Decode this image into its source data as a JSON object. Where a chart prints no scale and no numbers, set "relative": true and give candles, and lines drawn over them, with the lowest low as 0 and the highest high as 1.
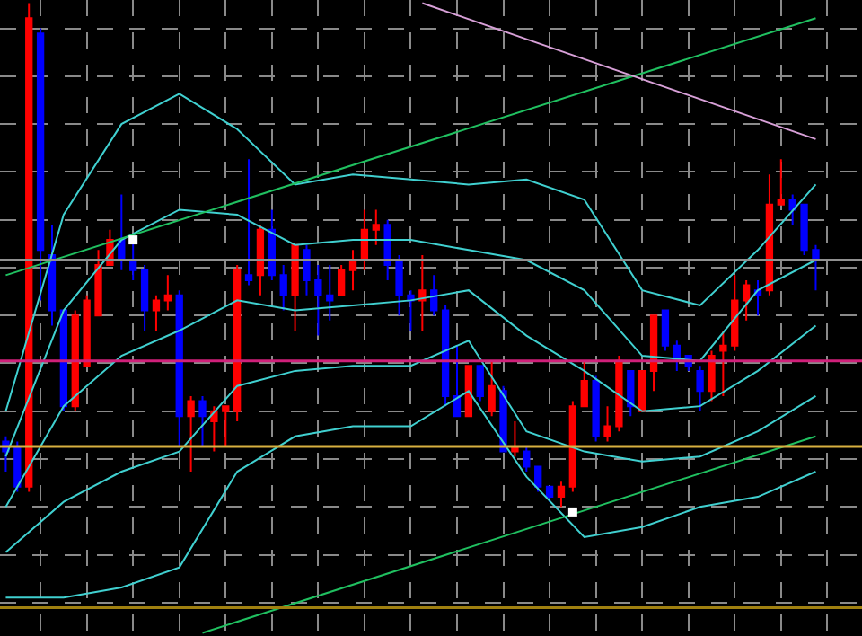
{
  "chart_data": {
    "type": "candlestick",
    "relative": true,
    "grid": true,
    "tick_labels": false,
    "categories": [
      null,
      null,
      null,
      null,
      null,
      null,
      null,
      null,
      null,
      null,
      null,
      null,
      null,
      null,
      null,
      null,
      null,
      null,
      null,
      null,
      null,
      null,
      null,
      null,
      null,
      null,
      null,
      null,
      null,
      null,
      null,
      null,
      null,
      null,
      null,
      null,
      null,
      null,
      null,
      null,
      null,
      null,
      null,
      null,
      null,
      null,
      null,
      null,
      null,
      null,
      null,
      null,
      null,
      null,
      null,
      null,
      null,
      null,
      null,
      null,
      null,
      null,
      null,
      null,
      null,
      null,
      null,
      null,
      null,
      null,
      null
    ],
    "colors": [
      "#0000ff",
      "#0000ff",
      "#ff0000",
      "#0000ff",
      "#0000ff",
      "#0000ff",
      "#ff0000",
      "#ff0000",
      "#ff0000",
      "#ff0000",
      "#0000ff",
      "#0000ff",
      "#0000ff",
      "#ff0000",
      "#ff0000",
      "#0000ff",
      "#ff0000",
      "#0000ff",
      "#ff0000",
      "#ff0000",
      "#ff0000",
      "#0000ff",
      "#ff0000",
      "#0000ff",
      "#0000ff",
      "#ff0000",
      "#0000ff",
      "#0000ff",
      "#0000ff",
      "#ff0000",
      "#ff0000",
      "#ff0000",
      "#ff0000",
      "#0000ff",
      "#0000ff",
      "#0000ff",
      "#ff0000",
      "#0000ff",
      "#0000ff",
      "#0000ff",
      "#ff0000",
      "#0000ff",
      "#ff0000",
      "#0000ff",
      "#ff0000",
      "#0000ff",
      "#0000ff",
      "#0000ff",
      "#ff0000",
      "#ff0000",
      "#ff0000",
      "#0000ff",
      "#ff0000",
      "#ff0000",
      "#0000ff",
      "#ff0000",
      "#ff0000",
      "#0000ff",
      "#0000ff",
      "#0000ff",
      "#0000ff",
      "#ff0000",
      "#ff0000",
      "#ff0000",
      "#ff0000",
      "#0000ff",
      "#ff0000",
      "#ff0000",
      "#0000ff",
      "#0000ff",
      "#0000ff"
    ],
    "ohlc": [
      [
        0.13,
        0.14,
        0.07,
        0.11
      ],
      [
        0.12,
        0.13,
        0.03,
        0.04
      ],
      [
        0.04,
        1.0,
        0.03,
        0.97
      ],
      [
        0.94,
        0.95,
        0.41,
        0.51
      ],
      [
        0.5,
        0.56,
        0.36,
        0.39
      ],
      [
        0.39,
        0.39,
        0.19,
        0.2
      ],
      [
        0.2,
        0.39,
        0.19,
        0.38
      ],
      [
        0.28,
        0.42,
        0.28,
        0.41
      ],
      [
        0.38,
        0.51,
        0.38,
        0.48
      ],
      [
        0.48,
        0.55,
        0.48,
        0.53
      ],
      [
        0.53,
        0.62,
        0.47,
        0.49
      ],
      [
        0.49,
        0.53,
        0.45,
        0.47
      ],
      [
        0.47,
        0.48,
        0.35,
        0.39
      ],
      [
        0.39,
        0.42,
        0.35,
        0.41
      ],
      [
        0.41,
        0.46,
        0.39,
        0.42
      ],
      [
        0.42,
        0.43,
        0.12,
        0.18
      ],
      [
        0.18,
        0.22,
        0.07,
        0.21
      ],
      [
        0.21,
        0.22,
        0.12,
        0.18
      ],
      [
        0.17,
        0.2,
        0.11,
        0.19
      ],
      [
        0.19,
        0.2,
        0.12,
        0.2
      ],
      [
        0.19,
        0.48,
        0.17,
        0.47
      ],
      [
        0.46,
        0.69,
        0.44,
        0.45
      ],
      [
        0.46,
        0.56,
        0.42,
        0.55
      ],
      [
        0.55,
        0.59,
        0.45,
        0.46
      ],
      [
        0.46,
        0.48,
        0.39,
        0.42
      ],
      [
        0.42,
        0.52,
        0.35,
        0.52
      ],
      [
        0.51,
        0.52,
        0.42,
        0.45
      ],
      [
        0.45,
        0.48,
        0.34,
        0.42
      ],
      [
        0.42,
        0.48,
        0.37,
        0.41
      ],
      [
        0.42,
        0.48,
        0.42,
        0.47
      ],
      [
        0.47,
        0.51,
        0.43,
        0.49
      ],
      [
        0.49,
        0.59,
        0.47,
        0.55
      ],
      [
        0.55,
        0.59,
        0.52,
        0.56
      ],
      [
        0.56,
        0.57,
        0.45,
        0.48
      ],
      [
        0.49,
        0.5,
        0.38,
        0.42
      ],
      [
        0.42,
        0.43,
        0.35,
        0.41
      ],
      [
        0.41,
        0.5,
        0.35,
        0.43
      ],
      [
        0.43,
        0.46,
        0.38,
        0.39
      ],
      [
        0.39,
        0.4,
        0.2,
        0.22
      ],
      [
        0.22,
        0.32,
        0.18,
        0.18
      ],
      [
        0.18,
        0.28,
        0.18,
        0.28
      ],
      [
        0.28,
        0.28,
        0.21,
        0.22
      ],
      [
        0.19,
        0.29,
        0.18,
        0.24
      ],
      [
        0.23,
        0.24,
        0.11,
        0.11
      ],
      [
        0.11,
        0.17,
        0.1,
        0.12
      ],
      [
        0.11,
        0.12,
        0.07,
        0.08
      ],
      [
        0.08,
        0.08,
        0.03,
        0.04
      ],
      [
        0.04,
        0.04,
        0.01,
        0.02
      ],
      [
        0.02,
        0.05,
        0.0,
        0.04
      ],
      [
        0.04,
        0.21,
        0.03,
        0.2
      ],
      [
        0.2,
        0.29,
        0.2,
        0.25
      ],
      [
        0.25,
        0.26,
        0.13,
        0.14
      ],
      [
        0.14,
        0.2,
        0.13,
        0.16
      ],
      [
        0.16,
        0.3,
        0.15,
        0.29
      ],
      [
        0.27,
        0.27,
        0.18,
        0.2
      ],
      [
        0.19,
        0.27,
        0.19,
        0.27
      ],
      [
        0.27,
        0.38,
        0.23,
        0.38
      ],
      [
        0.39,
        0.39,
        0.31,
        0.32
      ],
      [
        0.32,
        0.33,
        0.27,
        0.29
      ],
      [
        0.3,
        0.3,
        0.27,
        0.28
      ],
      [
        0.27,
        0.28,
        0.19,
        0.23
      ],
      [
        0.23,
        0.31,
        0.21,
        0.3
      ],
      [
        0.31,
        0.35,
        0.22,
        0.32
      ],
      [
        0.32,
        0.46,
        0.31,
        0.41
      ],
      [
        0.41,
        0.45,
        0.37,
        0.44
      ],
      [
        0.43,
        0.45,
        0.38,
        0.42
      ],
      [
        0.43,
        0.66,
        0.42,
        0.6
      ],
      [
        0.6,
        0.69,
        0.6,
        0.61
      ],
      [
        0.61,
        0.62,
        0.56,
        0.59
      ],
      [
        0.6,
        0.6,
        0.5,
        0.51
      ],
      [
        0.51,
        0.52,
        0.43,
        0.49
      ]
    ],
    "series": [
      {
        "type": "line",
        "color": "#40d0d0",
        "values": [
          0.19,
          null,
          null,
          null,
          null,
          0.58,
          null,
          null,
          null,
          null,
          0.76,
          null,
          null,
          null,
          null,
          0.82,
          null,
          null,
          null,
          null,
          0.75,
          null,
          null,
          null,
          null,
          0.64,
          null,
          null,
          null,
          null,
          0.66,
          null,
          null,
          null,
          null,
          0.65,
          null,
          null,
          null,
          null,
          0.64,
          null,
          null,
          null,
          null,
          0.65,
          null,
          null,
          null,
          null,
          0.61,
          null,
          null,
          null,
          null,
          0.43,
          null,
          null,
          null,
          null,
          0.4,
          null,
          null,
          null,
          null,
          0.51,
          null,
          null,
          null,
          null,
          0.64
        ]
      },
      {
        "type": "line",
        "color": "#40d0d0",
        "values": [
          0.1,
          null,
          null,
          null,
          null,
          0.39,
          null,
          null,
          null,
          null,
          0.53,
          null,
          null,
          null,
          null,
          0.59,
          null,
          null,
          null,
          null,
          0.58,
          null,
          null,
          null,
          null,
          0.52,
          null,
          null,
          null,
          null,
          0.53,
          null,
          null,
          null,
          null,
          0.53,
          null,
          null,
          null,
          null,
          0.51,
          null,
          null,
          null,
          null,
          0.49,
          null,
          null,
          null,
          null,
          0.43,
          null,
          null,
          null,
          null,
          0.3,
          null,
          null,
          null,
          null,
          0.29,
          null,
          null,
          null,
          null,
          0.43,
          null,
          null,
          null,
          null,
          0.49
        ]
      },
      {
        "type": "line",
        "color": "#40d0d0",
        "values": [
          0.0,
          null,
          null,
          null,
          null,
          0.2,
          null,
          null,
          null,
          null,
          0.3,
          null,
          null,
          null,
          null,
          0.35,
          null,
          null,
          null,
          null,
          0.41,
          null,
          null,
          null,
          null,
          0.39,
          null,
          null,
          null,
          null,
          0.4,
          null,
          null,
          null,
          null,
          0.41,
          null,
          null,
          null,
          null,
          0.43,
          null,
          null,
          null,
          null,
          0.34,
          null,
          null,
          null,
          null,
          0.27,
          null,
          null,
          null,
          null,
          0.19,
          null,
          null,
          null,
          null,
          0.2,
          null,
          null,
          null,
          null,
          0.27,
          null,
          null,
          null,
          null,
          0.36
        ]
      },
      {
        "type": "line",
        "color": "#40d0d0",
        "values": [
          -0.09,
          null,
          null,
          null,
          null,
          0.01,
          null,
          null,
          null,
          null,
          0.07,
          null,
          null,
          null,
          null,
          0.11,
          null,
          null,
          null,
          null,
          0.24,
          null,
          null,
          null,
          null,
          0.27,
          null,
          null,
          null,
          null,
          0.28,
          null,
          null,
          null,
          null,
          0.28,
          null,
          null,
          null,
          null,
          0.33,
          null,
          null,
          null,
          null,
          0.15,
          null,
          null,
          null,
          null,
          0.11,
          null,
          null,
          null,
          null,
          0.09,
          null,
          null,
          null,
          null,
          0.1,
          null,
          null,
          null,
          null,
          0.15,
          null,
          null,
          null,
          null,
          0.22
        ]
      },
      {
        "type": "line",
        "color": "#40d0d0",
        "values": [
          -0.18,
          null,
          null,
          null,
          null,
          -0.18,
          null,
          null,
          null,
          null,
          -0.16,
          null,
          null,
          null,
          null,
          -0.12,
          null,
          null,
          null,
          null,
          0.07,
          null,
          null,
          null,
          null,
          0.14,
          null,
          null,
          null,
          null,
          0.16,
          null,
          null,
          null,
          null,
          0.16,
          null,
          null,
          null,
          null,
          0.23,
          null,
          null,
          null,
          null,
          0.06,
          null,
          null,
          null,
          null,
          -0.06,
          null,
          null,
          null,
          null,
          -0.04,
          null,
          null,
          null,
          null,
          0.0,
          null,
          null,
          null,
          null,
          0.02,
          null,
          null,
          null,
          null,
          0.07
        ]
      },
      {
        "type": "line",
        "color": "#20c060",
        "values": [
          0.46,
          null,
          null,
          null,
          null,
          null,
          null,
          null,
          null,
          null,
          null,
          null,
          null,
          null,
          null,
          null,
          null,
          null,
          null,
          null,
          null,
          null,
          null,
          null,
          null,
          null,
          null,
          null,
          null,
          null,
          null,
          null,
          null,
          null,
          null,
          null,
          null,
          null,
          null,
          null,
          null,
          null,
          null,
          null,
          null,
          null,
          null,
          null,
          null,
          null,
          null,
          null,
          null,
          null,
          null,
          null,
          null,
          null,
          null,
          null,
          null,
          null,
          null,
          null,
          null,
          null,
          null,
          null,
          null,
          null,
          0.97
        ]
      },
      {
        "type": "line",
        "color": "#20c060",
        "values": [
          null,
          null,
          null,
          null,
          null,
          null,
          null,
          null,
          null,
          null,
          null,
          null,
          null,
          null,
          null,
          null,
          null,
          -0.25,
          null,
          null,
          null,
          null,
          null,
          null,
          null,
          null,
          null,
          null,
          null,
          null,
          null,
          null,
          null,
          null,
          null,
          null,
          null,
          null,
          null,
          null,
          null,
          null,
          null,
          null,
          null,
          null,
          null,
          null,
          null,
          null,
          null,
          null,
          null,
          null,
          null,
          null,
          null,
          null,
          null,
          null,
          null,
          null,
          null,
          null,
          null,
          null,
          null,
          null,
          null,
          null,
          0.14
        ]
      },
      {
        "type": "line",
        "color": "#d8a0d8",
        "values": [
          null,
          null,
          null,
          null,
          null,
          null,
          null,
          null,
          null,
          null,
          null,
          null,
          null,
          null,
          null,
          null,
          null,
          null,
          null,
          null,
          null,
          null,
          null,
          null,
          null,
          null,
          null,
          null,
          null,
          null,
          null,
          null,
          null,
          null,
          null,
          null,
          1.0,
          null,
          null,
          null,
          null,
          null,
          null,
          null,
          null,
          null,
          null,
          null,
          null,
          null,
          null,
          null,
          null,
          null,
          null,
          null,
          null,
          null,
          null,
          null,
          null,
          null,
          null,
          null,
          null,
          null,
          null,
          null,
          null,
          null,
          0.73
        ]
      },
      {
        "type": "scatter",
        "marker": "square",
        "color": "#ffffff",
        "values": [
          null,
          null,
          null,
          null,
          null,
          null,
          null,
          null,
          null,
          null,
          null,
          0.53,
          null,
          null,
          null,
          null,
          null,
          null,
          null,
          null,
          null,
          null,
          null,
          null,
          null,
          null,
          null,
          null,
          null,
          null,
          null,
          null,
          null,
          null,
          null,
          null,
          null,
          null,
          null,
          null,
          null,
          null,
          null,
          null,
          null,
          null,
          null,
          null,
          null,
          -0.01,
          null,
          null,
          null,
          null,
          null,
          null,
          null,
          null,
          null,
          null,
          null,
          null,
          null,
          null,
          null,
          null,
          null,
          null,
          null,
          null,
          null
        ]
      }
    ],
    "ref_lines": [
      {
        "axis": "y",
        "value": 0.49,
        "color": "#909090"
      },
      {
        "axis": "y",
        "value": 0.29,
        "color": "#d0207a"
      },
      {
        "axis": "y",
        "value": 0.12,
        "color": "#d8b040"
      },
      {
        "axis": "y",
        "value": -0.2,
        "color": "#a08010"
      }
    ]
  }
}
